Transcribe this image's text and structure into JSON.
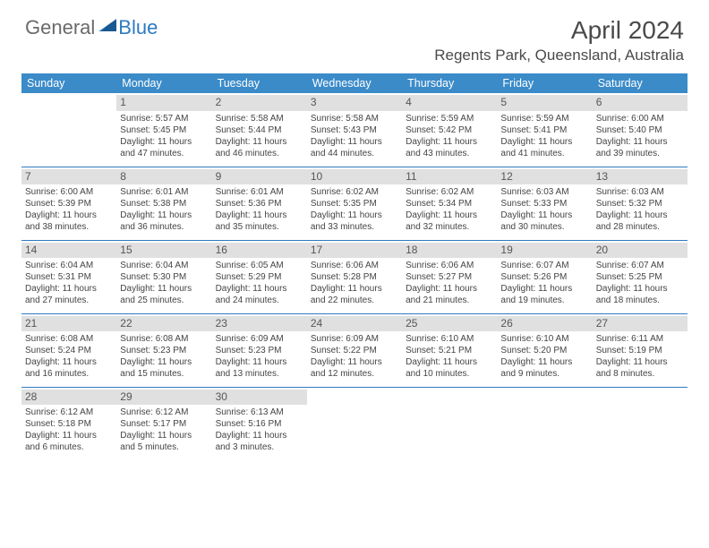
{
  "logo": {
    "text1": "General",
    "text2": "Blue"
  },
  "title": "April 2024",
  "location": "Regents Park, Queensland, Australia",
  "colors": {
    "header_bg": "#3b8bc9",
    "header_fg": "#ffffff",
    "daynum_bg": "#e0e0e0",
    "row_border": "#2f7ac0",
    "logo_gray": "#6a6a6a",
    "logo_blue": "#2f7ac0"
  },
  "weekdays": [
    "Sunday",
    "Monday",
    "Tuesday",
    "Wednesday",
    "Thursday",
    "Friday",
    "Saturday"
  ],
  "weeks": [
    [
      null,
      {
        "d": "1",
        "sr": "5:57 AM",
        "ss": "5:45 PM",
        "dl": "11 hours and 47 minutes."
      },
      {
        "d": "2",
        "sr": "5:58 AM",
        "ss": "5:44 PM",
        "dl": "11 hours and 46 minutes."
      },
      {
        "d": "3",
        "sr": "5:58 AM",
        "ss": "5:43 PM",
        "dl": "11 hours and 44 minutes."
      },
      {
        "d": "4",
        "sr": "5:59 AM",
        "ss": "5:42 PM",
        "dl": "11 hours and 43 minutes."
      },
      {
        "d": "5",
        "sr": "5:59 AM",
        "ss": "5:41 PM",
        "dl": "11 hours and 41 minutes."
      },
      {
        "d": "6",
        "sr": "6:00 AM",
        "ss": "5:40 PM",
        "dl": "11 hours and 39 minutes."
      }
    ],
    [
      {
        "d": "7",
        "sr": "6:00 AM",
        "ss": "5:39 PM",
        "dl": "11 hours and 38 minutes."
      },
      {
        "d": "8",
        "sr": "6:01 AM",
        "ss": "5:38 PM",
        "dl": "11 hours and 36 minutes."
      },
      {
        "d": "9",
        "sr": "6:01 AM",
        "ss": "5:36 PM",
        "dl": "11 hours and 35 minutes."
      },
      {
        "d": "10",
        "sr": "6:02 AM",
        "ss": "5:35 PM",
        "dl": "11 hours and 33 minutes."
      },
      {
        "d": "11",
        "sr": "6:02 AM",
        "ss": "5:34 PM",
        "dl": "11 hours and 32 minutes."
      },
      {
        "d": "12",
        "sr": "6:03 AM",
        "ss": "5:33 PM",
        "dl": "11 hours and 30 minutes."
      },
      {
        "d": "13",
        "sr": "6:03 AM",
        "ss": "5:32 PM",
        "dl": "11 hours and 28 minutes."
      }
    ],
    [
      {
        "d": "14",
        "sr": "6:04 AM",
        "ss": "5:31 PM",
        "dl": "11 hours and 27 minutes."
      },
      {
        "d": "15",
        "sr": "6:04 AM",
        "ss": "5:30 PM",
        "dl": "11 hours and 25 minutes."
      },
      {
        "d": "16",
        "sr": "6:05 AM",
        "ss": "5:29 PM",
        "dl": "11 hours and 24 minutes."
      },
      {
        "d": "17",
        "sr": "6:06 AM",
        "ss": "5:28 PM",
        "dl": "11 hours and 22 minutes."
      },
      {
        "d": "18",
        "sr": "6:06 AM",
        "ss": "5:27 PM",
        "dl": "11 hours and 21 minutes."
      },
      {
        "d": "19",
        "sr": "6:07 AM",
        "ss": "5:26 PM",
        "dl": "11 hours and 19 minutes."
      },
      {
        "d": "20",
        "sr": "6:07 AM",
        "ss": "5:25 PM",
        "dl": "11 hours and 18 minutes."
      }
    ],
    [
      {
        "d": "21",
        "sr": "6:08 AM",
        "ss": "5:24 PM",
        "dl": "11 hours and 16 minutes."
      },
      {
        "d": "22",
        "sr": "6:08 AM",
        "ss": "5:23 PM",
        "dl": "11 hours and 15 minutes."
      },
      {
        "d": "23",
        "sr": "6:09 AM",
        "ss": "5:23 PM",
        "dl": "11 hours and 13 minutes."
      },
      {
        "d": "24",
        "sr": "6:09 AM",
        "ss": "5:22 PM",
        "dl": "11 hours and 12 minutes."
      },
      {
        "d": "25",
        "sr": "6:10 AM",
        "ss": "5:21 PM",
        "dl": "11 hours and 10 minutes."
      },
      {
        "d": "26",
        "sr": "6:10 AM",
        "ss": "5:20 PM",
        "dl": "11 hours and 9 minutes."
      },
      {
        "d": "27",
        "sr": "6:11 AM",
        "ss": "5:19 PM",
        "dl": "11 hours and 8 minutes."
      }
    ],
    [
      {
        "d": "28",
        "sr": "6:12 AM",
        "ss": "5:18 PM",
        "dl": "11 hours and 6 minutes."
      },
      {
        "d": "29",
        "sr": "6:12 AM",
        "ss": "5:17 PM",
        "dl": "11 hours and 5 minutes."
      },
      {
        "d": "30",
        "sr": "6:13 AM",
        "ss": "5:16 PM",
        "dl": "11 hours and 3 minutes."
      },
      null,
      null,
      null,
      null
    ]
  ],
  "labels": {
    "sunrise": "Sunrise: ",
    "sunset": "Sunset: ",
    "daylight": "Daylight: "
  }
}
